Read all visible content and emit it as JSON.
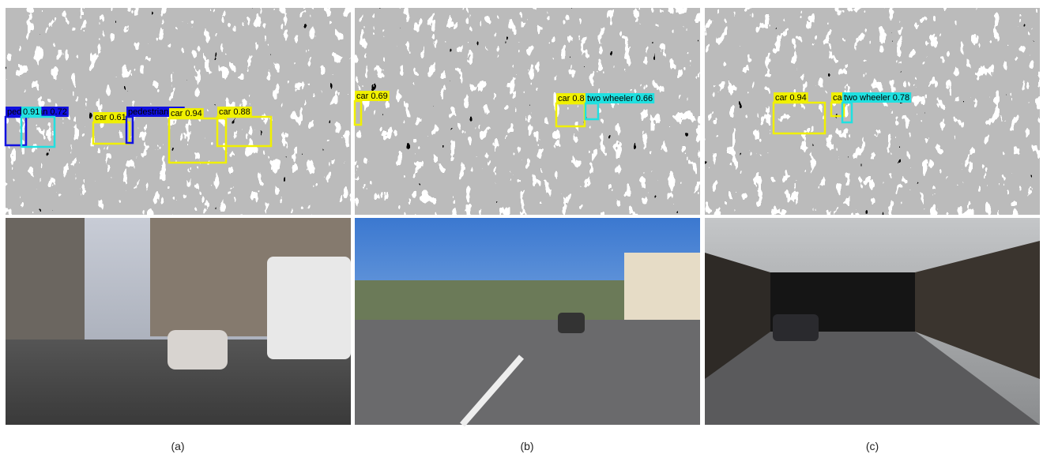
{
  "panels": [
    {
      "caption": "(a)",
      "detections": [
        {
          "label": "pedestrian 0.72",
          "color": "#1010e0"
        },
        {
          "label": "0.91",
          "color": "#20e0e0"
        },
        {
          "label": "car 0.61",
          "color": "#f0f000"
        },
        {
          "label": "pedestrian 0.7",
          "color": "#1010e0"
        },
        {
          "label": "car 0.94",
          "color": "#f0f000"
        },
        {
          "label": "car 0.88",
          "color": "#f0f000"
        }
      ]
    },
    {
      "caption": "(b)",
      "detections": [
        {
          "label": "car 0.69",
          "color": "#f0f000"
        },
        {
          "label": "car 0.8",
          "color": "#f0f000"
        },
        {
          "label": "two wheeler 0.66",
          "color": "#20e0e0"
        }
      ]
    },
    {
      "caption": "(c)",
      "detections": [
        {
          "label": "car 0.94",
          "color": "#f0f000"
        },
        {
          "label": "ca",
          "color": "#f0f000"
        },
        {
          "label": "two wheeler 0.78",
          "color": "#20e0e0"
        }
      ]
    }
  ]
}
